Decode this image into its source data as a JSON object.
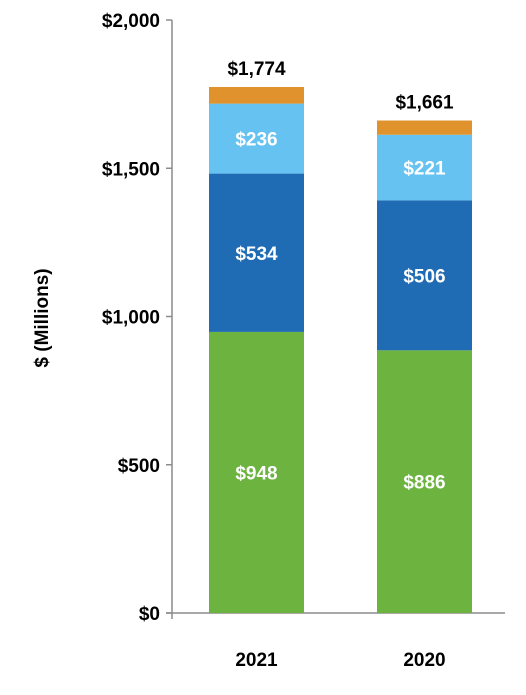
{
  "chart_data": {
    "type": "bar",
    "stacked": true,
    "ylabel": "$ (Millions)",
    "ylim": [
      0,
      2000
    ],
    "yticks": [
      0,
      500,
      1000,
      1500,
      2000
    ],
    "ytick_labels": [
      "$0",
      "$500",
      "$1,000",
      "$1,500",
      "$2,000"
    ],
    "categories": [
      "2021",
      "2020"
    ],
    "series": [
      {
        "values": [
          948,
          886
        ],
        "color": "#6cb33f",
        "labels": [
          "$948",
          "$886"
        ]
      },
      {
        "values": [
          534,
          506
        ],
        "color": "#1f6cb5",
        "labels": [
          "$534",
          "$506"
        ]
      },
      {
        "values": [
          236,
          221
        ],
        "color": "#66c2f0",
        "labels": [
          "$236",
          "$221"
        ]
      },
      {
        "values": [
          56,
          48
        ],
        "color": "#e0922c",
        "labels": [
          "",
          ""
        ]
      }
    ],
    "totals": [
      1774,
      1661
    ],
    "total_labels": [
      "$1,774",
      "$1,661"
    ],
    "grid": false,
    "legend": "none"
  }
}
